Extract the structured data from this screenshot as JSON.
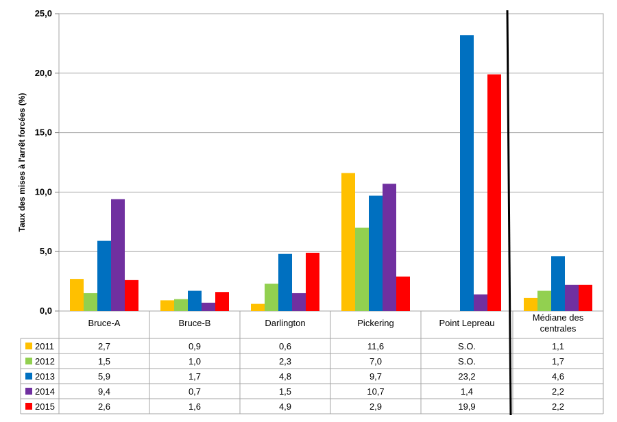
{
  "chart_data": {
    "type": "bar",
    "title": "",
    "ylabel": "Taux des mises à l'arrêt forcées (%)",
    "xlabel": "",
    "ylim": [
      0,
      25
    ],
    "yticks": [
      "0,0",
      "5,0",
      "10,0",
      "15,0",
      "20,0",
      "25,0"
    ],
    "ytick_values": [
      0,
      5,
      10,
      15,
      20,
      25
    ],
    "grid": true,
    "legend_position": "table-left",
    "categories": [
      "Bruce-A",
      "Bruce-B",
      "Darlington",
      "Pickering",
      "Point Lepreau",
      "Médiane des centrales"
    ],
    "series": [
      {
        "name": "2011",
        "color": "#FFC000",
        "values": [
          2.7,
          0.9,
          0.6,
          11.6,
          null,
          1.1
        ],
        "labels": [
          "2,7",
          "0,9",
          "0,6",
          "11,6",
          "S.O.",
          "1,1"
        ]
      },
      {
        "name": "2012",
        "color": "#92D050",
        "values": [
          1.5,
          1.0,
          2.3,
          7.0,
          null,
          1.7
        ],
        "labels": [
          "1,5",
          "1,0",
          "2,3",
          "7,0",
          "S.O.",
          "1,7"
        ]
      },
      {
        "name": "2013",
        "color": "#0070C0",
        "values": [
          5.9,
          1.7,
          4.8,
          9.7,
          23.2,
          4.6
        ],
        "labels": [
          "5,9",
          "1,7",
          "4,8",
          "9,7",
          "23,2",
          "4,6"
        ]
      },
      {
        "name": "2014",
        "color": "#7030A0",
        "values": [
          9.4,
          0.7,
          1.5,
          10.7,
          1.4,
          2.2
        ],
        "labels": [
          "9,4",
          "0,7",
          "1,5",
          "10,7",
          "1,4",
          "2,2"
        ]
      },
      {
        "name": "2015",
        "color": "#FF0000",
        "values": [
          2.6,
          1.6,
          4.9,
          2.9,
          19.9,
          2.2
        ],
        "labels": [
          "2,6",
          "1,6",
          "4,9",
          "2,9",
          "19,9",
          "2,2"
        ]
      }
    ]
  }
}
